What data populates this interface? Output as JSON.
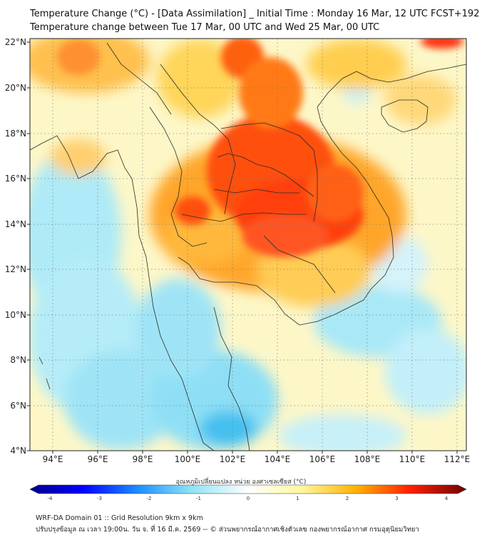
{
  "titles": {
    "line1": "Temperature Change (°C) - [Data Assimilation] _ Initial Time : Monday 16 Mar, 12 UTC FCST+192",
    "line2": "Temperature change between Tue 17 Mar, 00 UTC and Wed 25 Mar, 00 UTC"
  },
  "axes": {
    "lon_ticks": [
      "94°E",
      "96°E",
      "98°E",
      "100°E",
      "102°E",
      "104°E",
      "106°E",
      "108°E",
      "110°E",
      "112°E"
    ],
    "lat_ticks": [
      "22°N",
      "20°N",
      "18°N",
      "16°N",
      "14°N",
      "12°N",
      "10°N",
      "8°N",
      "6°N",
      "4°N"
    ]
  },
  "colorbar": {
    "label": "อุณหภูมิเปลี่ยนแปลง หน่วย องศาเซลเซียส (°C)",
    "ticks": [
      "-4",
      "-3",
      "-2",
      "-1",
      "0",
      "1",
      "2",
      "3",
      "4"
    ],
    "min": -4,
    "max": 4
  },
  "footer": {
    "line1": "WRF-DA Domain 01 :: Grid Resolution 9km x 9km",
    "line2": "ปรับปรุงข้อมูล ณ เวลา 19:00น. วัน จ. ที่ 16 มี.ค. 2569 -- © ส่วนพยากรณ์อากาศเชิงตัวเลข กองพยากรณ์อากาศ กรมอุตุนิยมวิทยา"
  },
  "colors": {
    "neg_deep": "#00008b",
    "neg_mid": "#1e90ff",
    "neg_light": "#8fe3f5",
    "zero": "#ffffff",
    "pos_light": "#fff8a0",
    "pos_mid": "#ffb000",
    "pos_strong": "#ff2000",
    "pos_deep": "#700000"
  }
}
